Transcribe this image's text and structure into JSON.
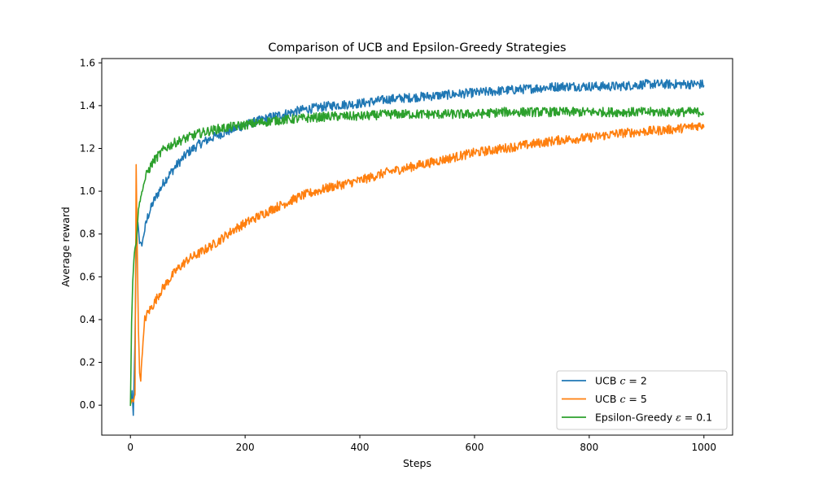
{
  "chart_data": {
    "type": "line",
    "title": "Comparison of UCB and Epsilon-Greedy Strategies",
    "xlabel": "Steps",
    "ylabel": "Average reward",
    "xlim": [
      -50,
      1050
    ],
    "ylim": [
      -0.14,
      1.62
    ],
    "xticks": [
      0,
      200,
      400,
      600,
      800,
      1000
    ],
    "yticks": [
      0.0,
      0.2,
      0.4,
      0.6,
      0.8,
      1.0,
      1.2,
      1.4,
      1.6
    ],
    "xtick_labels": [
      "0",
      "200",
      "400",
      "600",
      "800",
      "1000"
    ],
    "ytick_labels": [
      "0.0",
      "0.2",
      "0.4",
      "0.6",
      "0.8",
      "1.0",
      "1.2",
      "1.4",
      "1.6"
    ],
    "grid": false,
    "legend_position": "lower-right",
    "series": [
      {
        "name": "UCB c = 2",
        "legend_parts": [
          "UCB ",
          "c",
          " = 2"
        ],
        "color": "#1f77b4",
        "x": [
          0,
          3,
          5,
          8,
          10,
          13,
          16,
          20,
          25,
          30,
          40,
          50,
          60,
          80,
          100,
          120,
          150,
          180,
          200,
          250,
          300,
          350,
          400,
          450,
          500,
          550,
          600,
          650,
          700,
          750,
          800,
          850,
          900,
          950,
          1000
        ],
        "y": [
          0.0,
          0.06,
          -0.05,
          0.3,
          0.75,
          0.86,
          0.76,
          0.75,
          0.82,
          0.88,
          0.95,
          1.0,
          1.05,
          1.12,
          1.18,
          1.22,
          1.26,
          1.29,
          1.31,
          1.35,
          1.38,
          1.4,
          1.41,
          1.43,
          1.44,
          1.45,
          1.46,
          1.47,
          1.48,
          1.49,
          1.49,
          1.49,
          1.5,
          1.5,
          1.5
        ]
      },
      {
        "name": "UCB c = 5",
        "legend_parts": [
          "UCB ",
          "c",
          " = 5"
        ],
        "color": "#ff7f0e",
        "x": [
          0,
          3,
          5,
          8,
          10,
          12,
          14,
          16,
          18,
          20,
          25,
          30,
          40,
          50,
          60,
          80,
          100,
          120,
          150,
          180,
          200,
          250,
          300,
          350,
          400,
          450,
          500,
          550,
          600,
          650,
          700,
          750,
          800,
          850,
          900,
          950,
          1000
        ],
        "y": [
          0.0,
          0.03,
          0.01,
          0.05,
          1.12,
          0.72,
          0.35,
          0.15,
          0.12,
          0.22,
          0.4,
          0.43,
          0.47,
          0.52,
          0.56,
          0.63,
          0.68,
          0.71,
          0.76,
          0.82,
          0.85,
          0.92,
          0.98,
          1.02,
          1.05,
          1.09,
          1.12,
          1.15,
          1.18,
          1.2,
          1.22,
          1.24,
          1.25,
          1.27,
          1.28,
          1.29,
          1.31
        ]
      },
      {
        "name": "Epsilon-Greedy ε = 0.1",
        "legend_parts": [
          "Epsilon-Greedy ",
          "ε",
          " = 0.1"
        ],
        "color": "#2ca02c",
        "x": [
          0,
          2,
          4,
          6,
          8,
          10,
          14,
          18,
          22,
          26,
          30,
          40,
          50,
          60,
          80,
          100,
          120,
          150,
          200,
          250,
          300,
          350,
          400,
          450,
          500,
          550,
          600,
          650,
          700,
          750,
          800,
          850,
          900,
          950,
          1000
        ],
        "y": [
          0.0,
          0.38,
          0.58,
          0.68,
          0.74,
          0.75,
          0.92,
          0.97,
          1.02,
          1.06,
          1.09,
          1.14,
          1.17,
          1.2,
          1.23,
          1.25,
          1.27,
          1.29,
          1.31,
          1.33,
          1.34,
          1.35,
          1.35,
          1.36,
          1.36,
          1.36,
          1.36,
          1.37,
          1.37,
          1.37,
          1.37,
          1.37,
          1.37,
          1.37,
          1.37
        ]
      }
    ]
  }
}
